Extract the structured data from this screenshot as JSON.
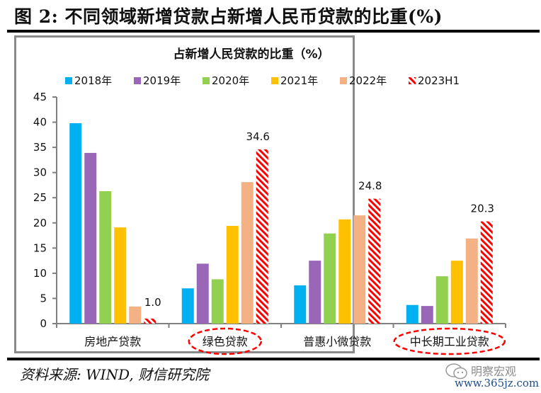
{
  "figure": {
    "title": "图 2:  不同领域新增贷款占新增人民币贷款的比重(%)",
    "source": "资料来源: WIND, 财信研究院",
    "watermark": {
      "name": "明察宏观",
      "url": "www.365jz.com",
      "icon": "wechat-icon"
    }
  },
  "chart_data": {
    "type": "bar",
    "title": "占新增人民贷款的比重（%）",
    "xlabel": "",
    "ylabel": "",
    "ylim": [
      0,
      45
    ],
    "yticks": [
      0,
      5,
      10,
      15,
      20,
      25,
      30,
      35,
      40,
      45
    ],
    "grid": false,
    "legend_position": "top",
    "categories": [
      "房地产贷款",
      "绿色贷款",
      "普惠小微贷款",
      "中长期工业贷款"
    ],
    "highlighted_categories": [
      "绿色贷款",
      "中长期工业贷款"
    ],
    "series": [
      {
        "name": "2018年",
        "color": "#00B0F0",
        "pattern": "solid",
        "values": [
          39.8,
          7.0,
          7.6,
          3.7
        ]
      },
      {
        "name": "2019年",
        "color": "#9966B8",
        "pattern": "solid",
        "values": [
          33.9,
          11.9,
          12.5,
          3.5
        ]
      },
      {
        "name": "2020年",
        "color": "#92D050",
        "pattern": "solid",
        "values": [
          26.3,
          8.8,
          17.9,
          9.4
        ]
      },
      {
        "name": "2021年",
        "color": "#FFC000",
        "pattern": "solid",
        "values": [
          19.1,
          19.4,
          20.7,
          12.5
        ]
      },
      {
        "name": "2022年",
        "color": "#F4B183",
        "pattern": "solid",
        "values": [
          3.4,
          28.1,
          21.5,
          16.9
        ]
      },
      {
        "name": "2023H1",
        "color": "#FF0000",
        "pattern": "diagonal-stripes",
        "values": [
          1.0,
          34.6,
          24.8,
          20.3
        ]
      }
    ],
    "data_labels": [
      {
        "series": "2023H1",
        "category": "房地产贷款",
        "text": "1.0"
      },
      {
        "series": "2023H1",
        "category": "绿色贷款",
        "text": "34.6"
      },
      {
        "series": "2023H1",
        "category": "普惠小微贷款",
        "text": "24.8"
      },
      {
        "series": "2023H1",
        "category": "中长期工业贷款",
        "text": "20.3"
      }
    ]
  }
}
